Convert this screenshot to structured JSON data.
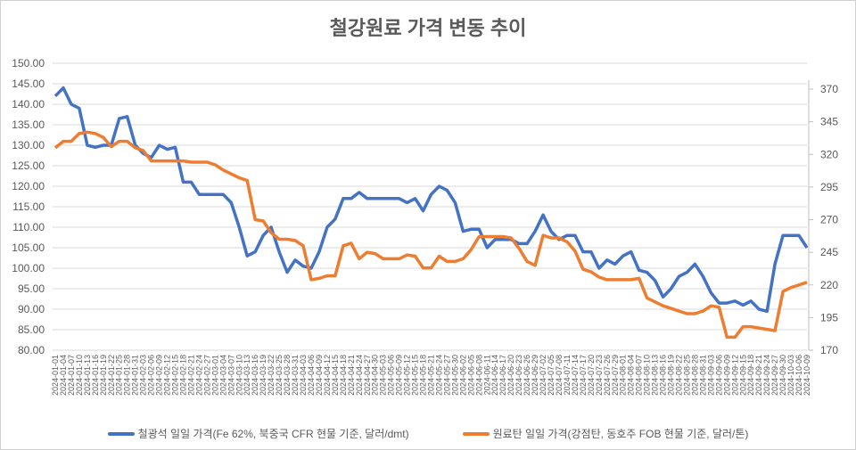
{
  "chart_data": {
    "type": "line",
    "title": "철강원료 가격 변동 추이",
    "categories": [
      "2024-01-01",
      "2024-01-04",
      "2024-01-07",
      "2024-01-10",
      "2024-01-13",
      "2024-01-16",
      "2024-01-19",
      "2024-01-22",
      "2024-01-25",
      "2024-01-28",
      "2024-01-31",
      "2024-02-03",
      "2024-02-06",
      "2024-02-09",
      "2024-02-12",
      "2024-02-15",
      "2024-02-18",
      "2024-02-21",
      "2024-02-24",
      "2024-02-27",
      "2024-03-01",
      "2024-03-04",
      "2024-03-07",
      "2024-03-10",
      "2024-03-13",
      "2024-03-16",
      "2024-03-19",
      "2024-03-22",
      "2024-03-25",
      "2024-03-28",
      "2024-03-31",
      "2024-04-03",
      "2024-04-06",
      "2024-04-09",
      "2024-04-12",
      "2024-04-15",
      "2024-04-18",
      "2024-04-21",
      "2024-04-24",
      "2024-04-27",
      "2024-04-30",
      "2024-05-03",
      "2024-05-06",
      "2024-05-09",
      "2024-05-12",
      "2024-05-15",
      "2024-05-18",
      "2024-05-21",
      "2024-05-24",
      "2024-05-27",
      "2024-05-30",
      "2024-06-02",
      "2024-06-05",
      "2024-06-08",
      "2024-06-11",
      "2024-06-14",
      "2024-06-17",
      "2024-06-20",
      "2024-06-23",
      "2024-06-26",
      "2024-06-29",
      "2024-07-02",
      "2024-07-05",
      "2024-07-08",
      "2024-07-11",
      "2024-07-14",
      "2024-07-17",
      "2024-07-20",
      "2024-07-23",
      "2024-07-26",
      "2024-07-29",
      "2024-08-01",
      "2024-08-04",
      "2024-08-07",
      "2024-08-10",
      "2024-08-13",
      "2024-08-16",
      "2024-08-19",
      "2024-08-22",
      "2024-08-25",
      "2024-08-28",
      "2024-08-31",
      "2024-09-03",
      "2024-09-06",
      "2024-09-09",
      "2024-09-12",
      "2024-09-15",
      "2024-09-18",
      "2024-09-21",
      "2024-09-24",
      "2024-09-27",
      "2024-09-30",
      "2024-10-03",
      "2024-10-06",
      "2024-10-09"
    ],
    "series": [
      {
        "name": "철광석 일일 가격(Fe 62%, 북중국 CFR 현물 기준, 달러/dmt)",
        "axis": "left",
        "color": "#4472C4",
        "values": [
          142,
          144,
          140,
          139,
          130,
          129.5,
          130,
          130,
          136.5,
          137,
          130,
          128,
          127,
          130,
          129,
          129.5,
          121,
          121,
          118,
          118,
          118,
          118,
          116,
          110,
          103,
          104,
          108,
          110,
          104,
          99,
          102,
          100.5,
          100,
          104,
          110,
          112,
          117,
          117,
          118.5,
          117,
          117,
          117,
          117,
          117,
          116,
          117,
          114,
          118,
          120,
          119,
          116,
          109,
          109.5,
          109.5,
          105,
          107,
          107,
          107,
          106,
          106,
          109,
          113,
          109,
          107,
          108,
          108,
          104,
          104,
          100,
          102,
          101,
          103,
          104,
          99.5,
          99,
          97,
          93,
          95,
          98,
          99,
          101,
          98,
          94,
          91.5,
          91.5,
          92,
          91,
          92,
          90,
          89.5,
          101,
          108,
          108,
          108,
          105
        ]
      },
      {
        "name": "원료탄 일일 가격(강점탄, 동호주 FOB 현물 기준, 달러/톤)",
        "axis": "right",
        "color": "#ED7D31",
        "values": [
          325,
          330,
          330,
          336,
          337,
          336,
          333,
          326,
          330,
          330,
          325,
          323,
          315,
          315,
          315,
          315,
          315,
          314,
          314,
          314,
          312,
          308,
          305,
          302,
          300,
          270,
          269,
          260,
          255,
          255,
          254,
          250,
          224,
          225,
          227,
          227,
          250,
          252,
          240,
          245,
          244,
          240,
          240,
          240,
          243,
          242,
          233,
          233,
          242,
          238,
          238,
          240,
          247,
          257,
          257,
          257,
          257,
          256,
          248,
          238,
          235,
          258,
          256,
          256,
          253,
          246,
          232,
          230,
          226,
          224,
          224,
          224,
          224,
          225,
          210,
          207,
          204,
          202,
          200,
          198,
          198,
          200,
          204,
          203,
          180,
          180,
          188,
          188,
          187,
          186,
          185,
          215,
          218,
          220,
          222
        ]
      }
    ],
    "y_left": {
      "range": [
        80,
        150
      ],
      "ticks": [
        "80.00",
        "85.00",
        "90.00",
        "95.00",
        "100.00",
        "105.00",
        "110.00",
        "115.00",
        "120.00",
        "125.00",
        "130.00",
        "135.00",
        "140.00",
        "145.00",
        "150.00"
      ]
    },
    "y_right": {
      "range": [
        170,
        370
      ],
      "ticks": [
        "170",
        "195",
        "220",
        "245",
        "270",
        "295",
        "320",
        "345",
        "370"
      ]
    },
    "grid": true,
    "legend": "bottom"
  }
}
